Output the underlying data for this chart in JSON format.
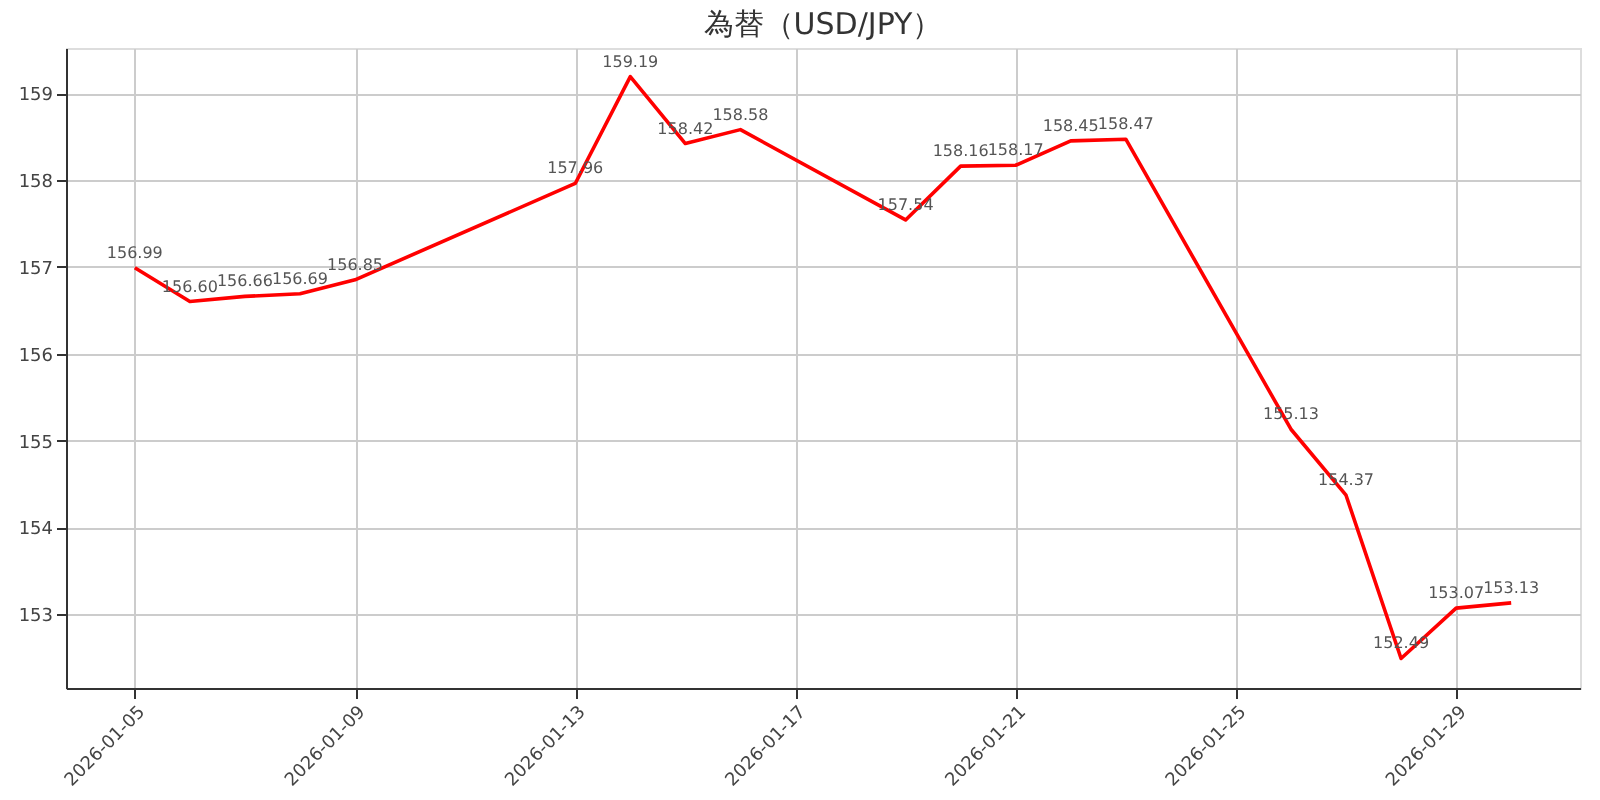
{
  "chart_data": {
    "type": "line",
    "title": "為替（USD/JPY）",
    "x": [
      "2026-01-05",
      "2026-01-06",
      "2026-01-07",
      "2026-01-08",
      "2026-01-09",
      "2026-01-13",
      "2026-01-14",
      "2026-01-15",
      "2026-01-16",
      "2026-01-19",
      "2026-01-20",
      "2026-01-21",
      "2026-01-22",
      "2026-01-23",
      "2026-01-26",
      "2026-01-27",
      "2026-01-28",
      "2026-01-29",
      "2026-01-30"
    ],
    "series": [
      {
        "color": "#ff0000",
        "values": [
          156.99,
          156.6,
          156.66,
          156.69,
          156.85,
          157.96,
          159.19,
          158.42,
          158.58,
          157.54,
          158.16,
          158.17,
          158.45,
          158.47,
          155.13,
          154.37,
          152.49,
          153.07,
          153.13
        ],
        "value_labels": [
          "156.99",
          "156.60",
          "156.66",
          "156.69",
          "156.85",
          "157.96",
          "159.19",
          "158.42",
          "158.58",
          "157.54",
          "158.16",
          "158.17",
          "158.45",
          "158.47",
          "155.13",
          "154.37",
          "152.49",
          "153.07",
          "153.13"
        ]
      }
    ],
    "xlim": [
      "2026-01-03T18:00",
      "2026-01-31T06:00"
    ],
    "xticks": [
      "2026-01-05",
      "2026-01-09",
      "2026-01-13",
      "2026-01-17",
      "2026-01-21",
      "2026-01-25",
      "2026-01-29"
    ],
    "ylim": [
      152.15,
      159.52
    ],
    "yticks": [
      153,
      154,
      155,
      156,
      157,
      158,
      159
    ],
    "grid": true,
    "marker": "none",
    "line_style": "solid"
  }
}
